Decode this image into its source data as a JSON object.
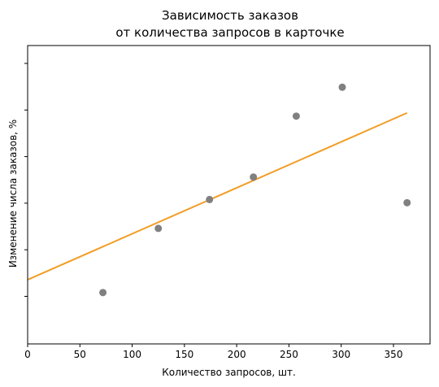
{
  "chart_data": {
    "type": "scatter",
    "title_lines": [
      "Зависимость заказов",
      "от количества запросов в карточке"
    ],
    "xlabel": "Количество запросов, шт.",
    "ylabel": "Изменение числа заказов, %",
    "xlim": [
      0,
      385
    ],
    "x_ticks": [
      0,
      50,
      100,
      150,
      200,
      250,
      300,
      350
    ],
    "y_tick_count": 6,
    "y_tick_labels_shown": false,
    "grid": false,
    "legend": "none",
    "points": [
      {
        "x": 72,
        "y": 0.8
      },
      {
        "x": 125,
        "y": 1.8
      },
      {
        "x": 174,
        "y": 2.25
      },
      {
        "x": 216,
        "y": 2.6
      },
      {
        "x": 257,
        "y": 3.55
      },
      {
        "x": 301,
        "y": 4.0
      },
      {
        "x": 363,
        "y": 2.2
      }
    ],
    "trend_line": {
      "x": [
        0,
        363
      ],
      "y": [
        1.0,
        3.6
      ]
    },
    "colors": {
      "points": "#808080",
      "trend_line": "#f29d26"
    }
  }
}
